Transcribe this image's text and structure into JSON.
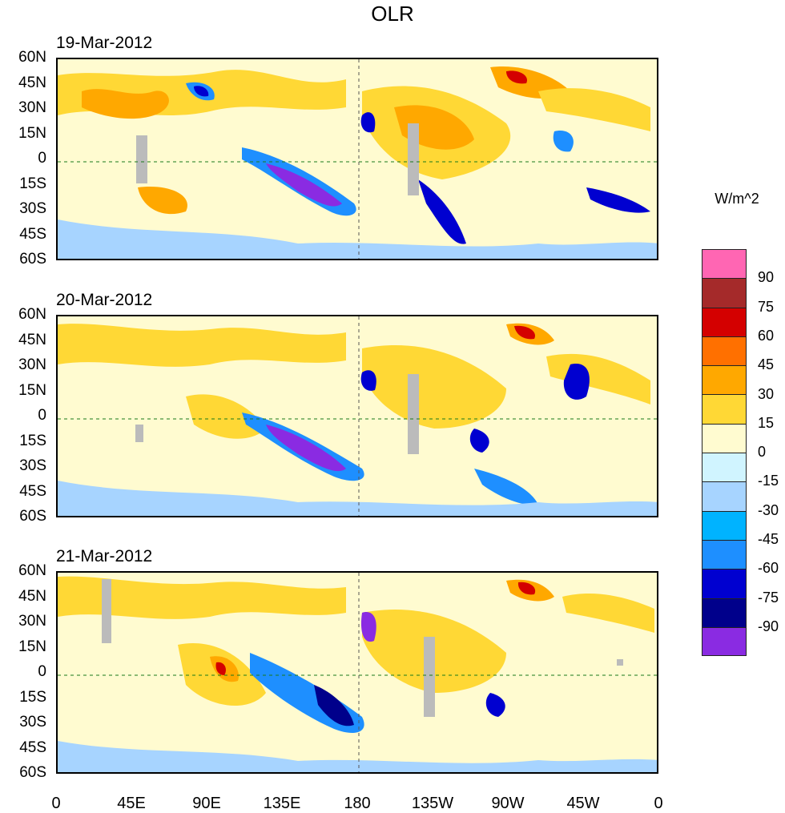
{
  "title": "OLR",
  "units": "W/m^2",
  "panels": [
    {
      "date": "19-Mar-2012"
    },
    {
      "date": "20-Mar-2012"
    },
    {
      "date": "21-Mar-2012"
    }
  ],
  "y_labels": [
    "60N",
    "45N",
    "30N",
    "15N",
    "0",
    "15S",
    "30S",
    "45S",
    "60S"
  ],
  "x_labels": [
    "0",
    "45E",
    "90E",
    "135E",
    "180",
    "135W",
    "90W",
    "45W",
    "0"
  ],
  "colorbar": {
    "labels": [
      "90",
      "75",
      "60",
      "45",
      "30",
      "15",
      "0",
      "-15",
      "-30",
      "-45",
      "-60",
      "-75",
      "-90"
    ],
    "colors": [
      "#ff66b3",
      "#a52a2a",
      "#d40000",
      "#ff7000",
      "#ffa800",
      "#ffd835",
      "#fffbd0",
      "#d0f4ff",
      "#a7d4ff",
      "#00b3ff",
      "#1e8fff",
      "#0000d0",
      "#00008b",
      "#8a2be2"
    ]
  }
}
